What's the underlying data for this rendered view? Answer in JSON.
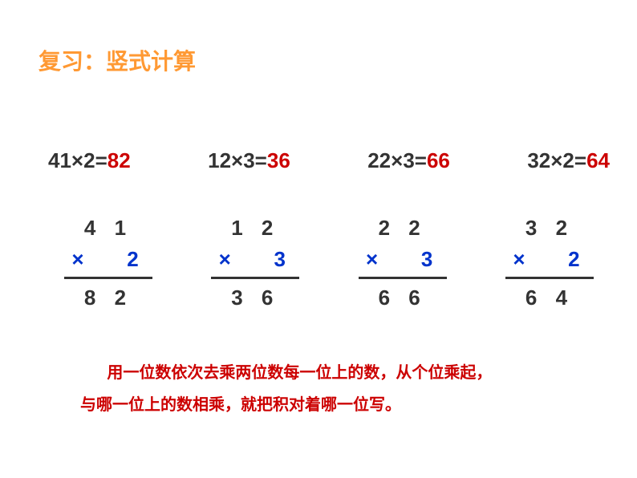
{
  "title": "复习：竖式计算",
  "equations": [
    {
      "expr": "41×2=",
      "result": "82"
    },
    {
      "expr": "12×3=",
      "result": "36"
    },
    {
      "expr": "22×3=",
      "result": "66"
    },
    {
      "expr": "32×2=",
      "result": "64"
    }
  ],
  "vertical": [
    {
      "top": "4 1",
      "mult_sign": "×",
      "mult_num": "2",
      "result": "8 2"
    },
    {
      "top": "1 2",
      "mult_sign": "×",
      "mult_num": "3",
      "result": "3 6"
    },
    {
      "top": "2 2",
      "mult_sign": "×",
      "mult_num": "3",
      "result": "6 6"
    },
    {
      "top": "3 2",
      "mult_sign": "×",
      "mult_num": "2",
      "result": "6 4"
    }
  ],
  "explanation_line1": "用一位数依次去乘两位数每一位上的数，从个位乘起，",
  "explanation_line2": "与哪一位上的数相乘，就把积对着哪一位写。",
  "colors": {
    "title": "#ff9933",
    "black": "#333333",
    "red": "#cc0000",
    "blue": "#0033cc",
    "background": "#ffffff"
  },
  "fontsize": {
    "title": 28,
    "equation": 26,
    "vertical": 26,
    "explanation": 20
  }
}
